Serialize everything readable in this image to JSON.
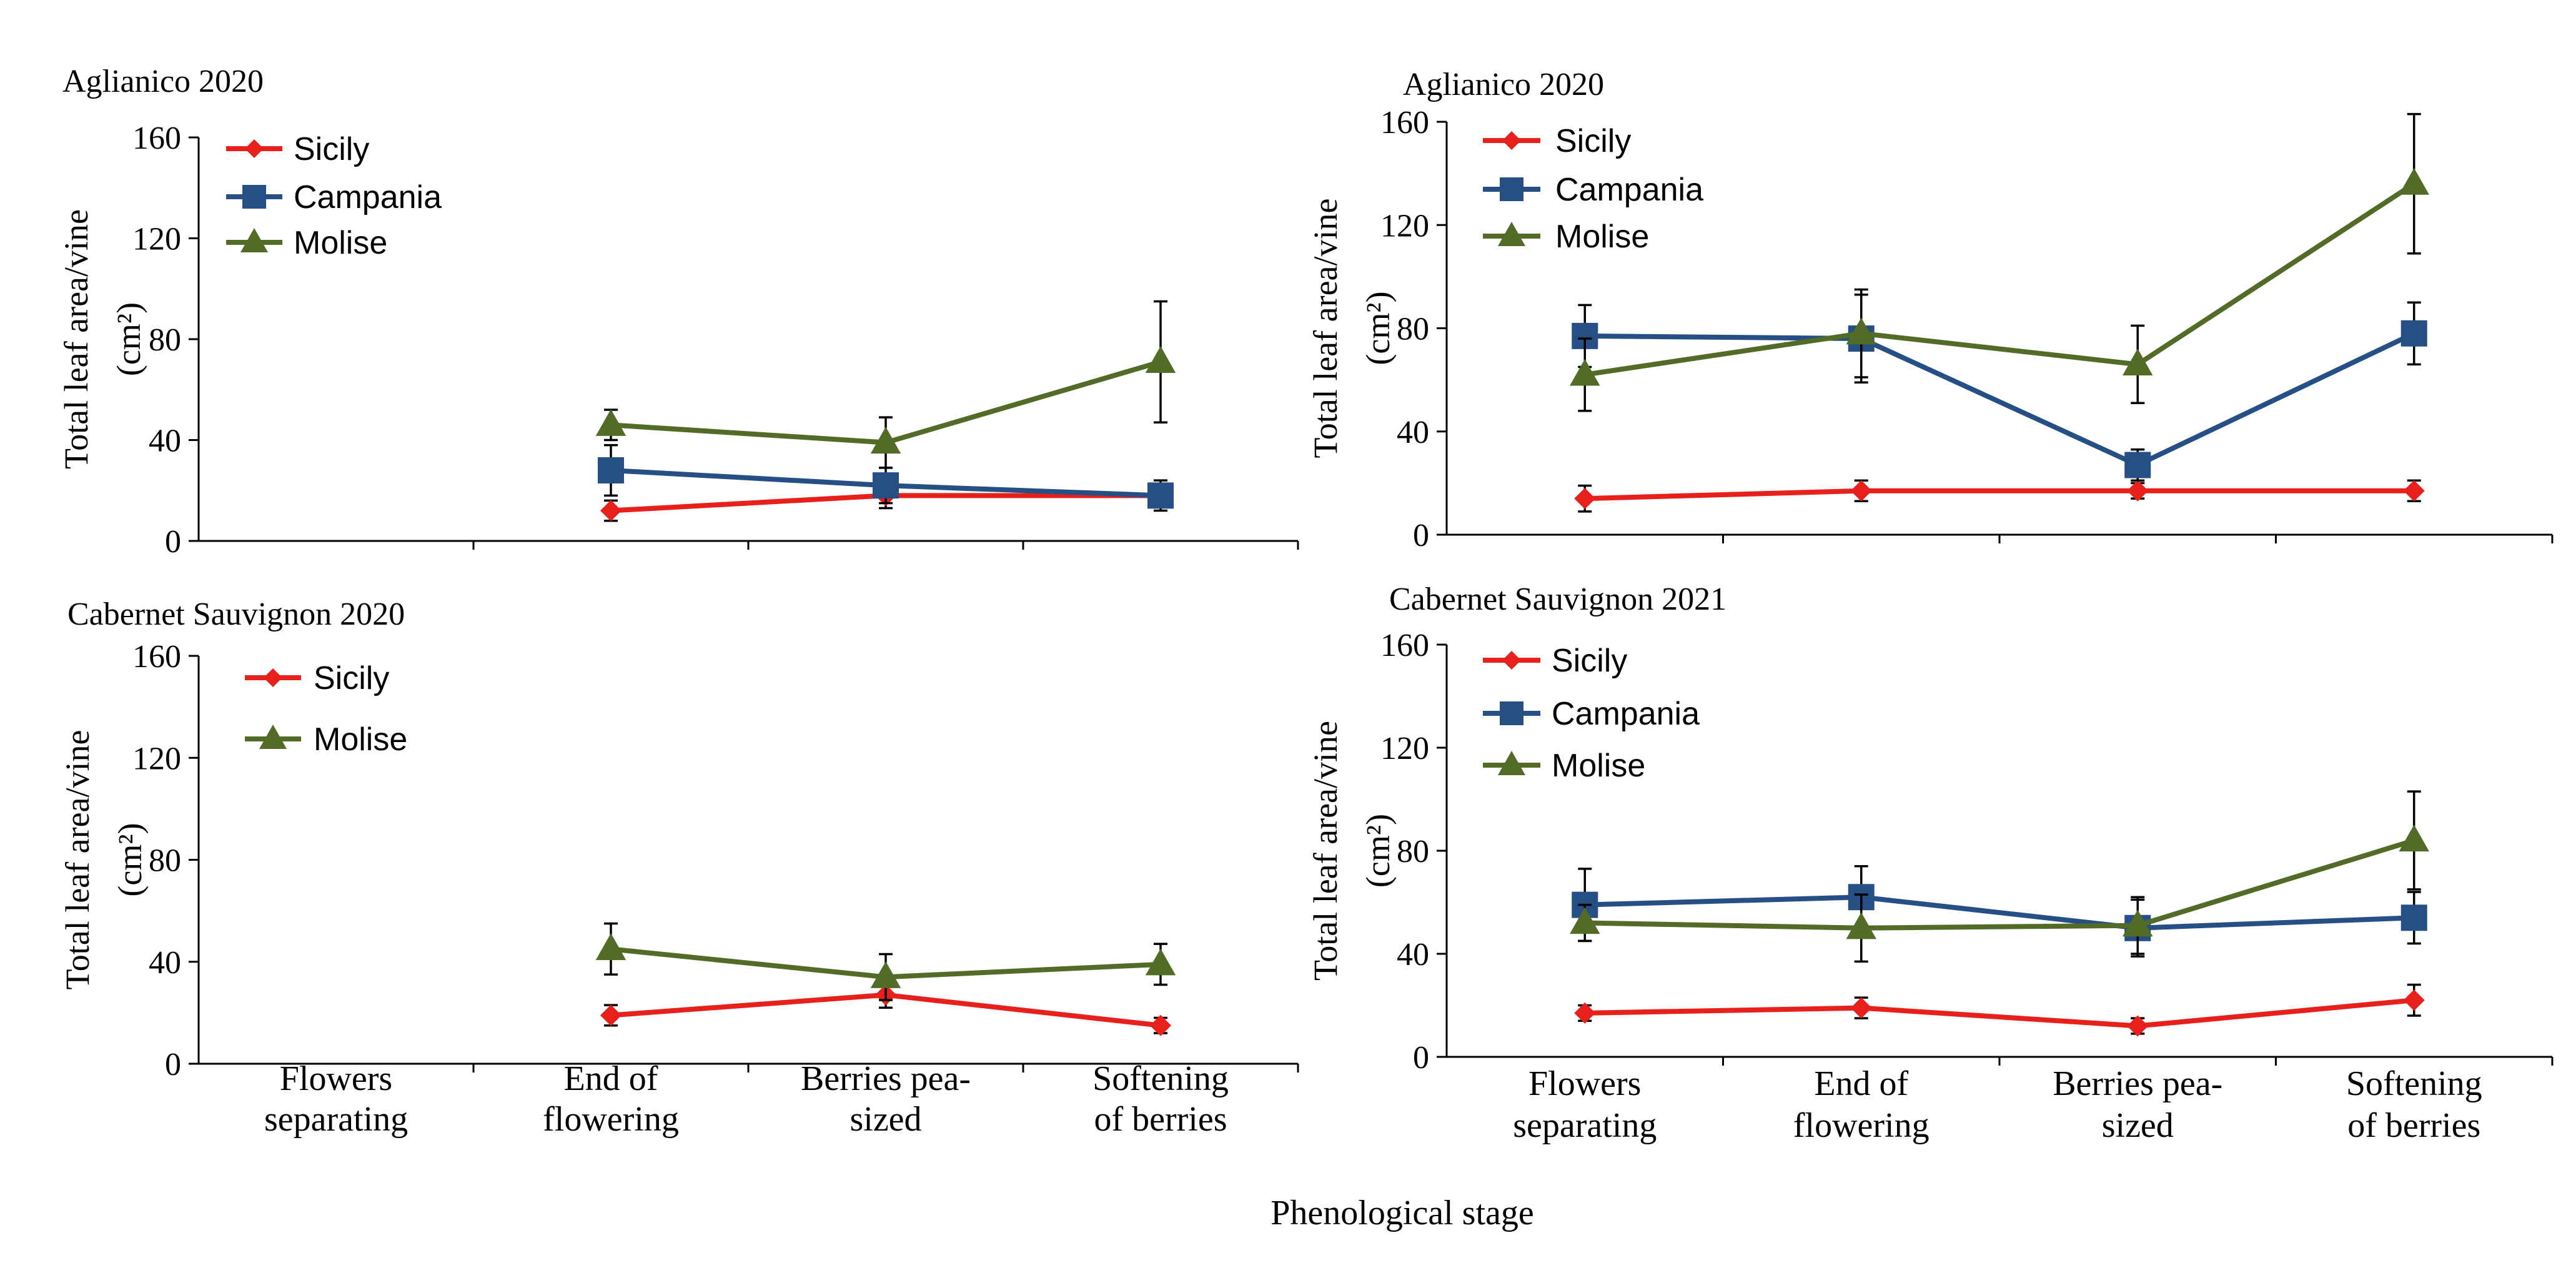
{
  "figure": {
    "xlabel": "Phenological stage",
    "categories": [
      [
        "Flowers",
        "separating"
      ],
      [
        "End of",
        "flowering"
      ],
      [
        "Berries pea-",
        "sized"
      ],
      [
        "Softening",
        "of berries"
      ]
    ]
  },
  "colors": {
    "Sicily": "#e8201c",
    "Campania": "#264f85",
    "Molise": "#526b27"
  },
  "chart_data": [
    {
      "type": "line",
      "title": "Aglianico 2020",
      "xlabel": "",
      "ylabel": "Total leaf area/vine (cm²)",
      "ylabel_lines": [
        "Total leaf area/vine",
        "(cm²)"
      ],
      "ylim": [
        0,
        160
      ],
      "yticks": [
        0,
        40,
        80,
        120,
        160
      ],
      "categories": [
        "Flowers separating",
        "End of flowering",
        "Berries pea-sized",
        "Softening of berries"
      ],
      "legend": [
        "Sicily",
        "Campania",
        "Molise"
      ],
      "series": [
        {
          "name": "Sicily",
          "marker": "diamond",
          "values": [
            null,
            12,
            18,
            18
          ],
          "errors": [
            null,
            4,
            5,
            3
          ]
        },
        {
          "name": "Campania",
          "marker": "square",
          "values": [
            null,
            28,
            22,
            18
          ],
          "errors": [
            null,
            10,
            7,
            6
          ]
        },
        {
          "name": "Molise",
          "marker": "triangle",
          "values": [
            null,
            46,
            39,
            71
          ],
          "errors": [
            null,
            6,
            10,
            24
          ]
        }
      ]
    },
    {
      "type": "line",
      "title": "Aglianico 2020",
      "xlabel": "",
      "ylabel": "Total leaf area/vine (cm²)",
      "ylabel_lines": [
        "Total leaf area/vine",
        "(cm²)"
      ],
      "ylim": [
        0,
        160
      ],
      "yticks": [
        0,
        40,
        80,
        120,
        160
      ],
      "categories": [
        "Flowers separating",
        "End of flowering",
        "Berries pea-sized",
        "Softening of berries"
      ],
      "legend": [
        "Sicily",
        "Campania",
        "Molise"
      ],
      "series": [
        {
          "name": "Sicily",
          "marker": "diamond",
          "values": [
            14,
            17,
            17,
            17
          ],
          "errors": [
            5,
            4,
            3,
            4
          ]
        },
        {
          "name": "Campania",
          "marker": "square",
          "values": [
            77,
            76,
            27,
            78
          ],
          "errors": [
            12,
            17,
            6,
            12
          ]
        },
        {
          "name": "Molise",
          "marker": "triangle",
          "values": [
            62,
            78,
            66,
            136
          ],
          "errors": [
            14,
            17,
            15,
            27
          ]
        }
      ]
    },
    {
      "type": "line",
      "title": "Cabernet Sauvignon 2020",
      "xlabel": "",
      "ylabel": "Total leaf area/vine (cm²)",
      "ylabel_lines": [
        "Total leaf area/vine",
        "(cm²)"
      ],
      "ylim": [
        0,
        160
      ],
      "yticks": [
        0,
        40,
        80,
        120,
        160
      ],
      "categories": [
        "Flowers separating",
        "End of flowering",
        "Berries pea-sized",
        "Softening of berries"
      ],
      "legend": [
        "Sicily",
        "Molise"
      ],
      "series": [
        {
          "name": "Sicily",
          "marker": "diamond",
          "values": [
            null,
            19,
            27,
            15
          ],
          "errors": [
            null,
            4,
            5,
            3
          ]
        },
        {
          "name": "Molise",
          "marker": "triangle",
          "values": [
            null,
            45,
            34,
            39
          ],
          "errors": [
            null,
            10,
            9,
            8
          ]
        }
      ]
    },
    {
      "type": "line",
      "title": "Cabernet Sauvignon 2021",
      "xlabel": "",
      "ylabel": "Total leaf area/vine (cm²)",
      "ylabel_lines": [
        "Total leaf area/vine",
        "(cm²)"
      ],
      "ylim": [
        0,
        160
      ],
      "yticks": [
        0,
        40,
        80,
        120,
        160
      ],
      "categories": [
        "Flowers separating",
        "End of flowering",
        "Berries pea-sized",
        "Softening of berries"
      ],
      "legend": [
        "Sicily",
        "Campania",
        "Molise"
      ],
      "series": [
        {
          "name": "Sicily",
          "marker": "diamond",
          "values": [
            17,
            19,
            12,
            22
          ],
          "errors": [
            3,
            4,
            3,
            6
          ]
        },
        {
          "name": "Campania",
          "marker": "square",
          "values": [
            59,
            62,
            50,
            54
          ],
          "errors": [
            14,
            12,
            11,
            10
          ]
        },
        {
          "name": "Molise",
          "marker": "triangle",
          "values": [
            52,
            50,
            51,
            84
          ],
          "errors": [
            7,
            13,
            11,
            19
          ]
        }
      ]
    }
  ]
}
